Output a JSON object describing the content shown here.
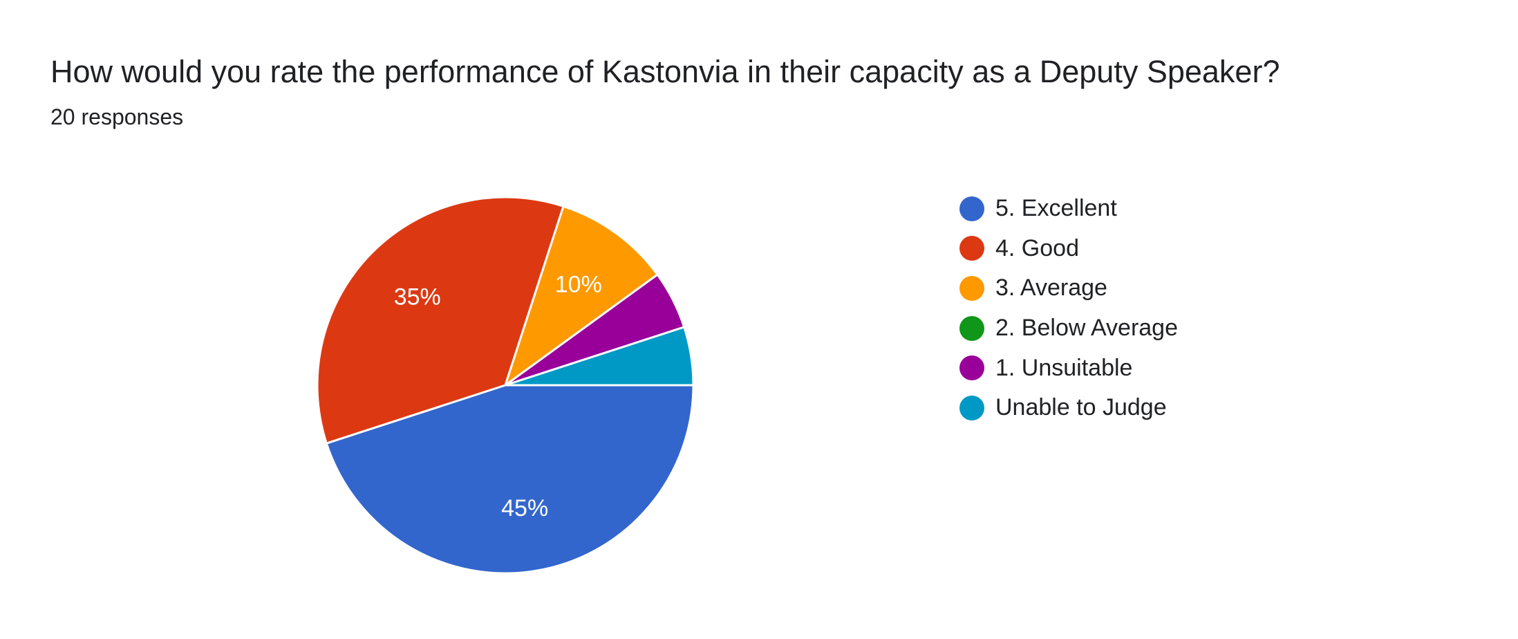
{
  "header": {
    "title": "How would you rate the performance of Kastonvia in their capacity as a Deputy Speaker?",
    "subtitle": "20 responses"
  },
  "chart_data": {
    "type": "pie",
    "title": "How would you rate the performance of Kastonvia in their capacity as a Deputy Speaker?",
    "subtitle": "20 responses",
    "total_responses": 20,
    "categories": [
      "5. Excellent",
      "4. Good",
      "3. Average",
      "2. Below Average",
      "1. Unsuitable",
      "Unable to Judge"
    ],
    "values": [
      45,
      35,
      10,
      0,
      5,
      5
    ],
    "data_labels": [
      "45%",
      "35%",
      "10%",
      "",
      "",
      ""
    ],
    "colors": [
      "#3366cc",
      "#dc3912",
      "#ff9900",
      "#109618",
      "#990099",
      "#0099c6"
    ],
    "legend_position": "right"
  }
}
